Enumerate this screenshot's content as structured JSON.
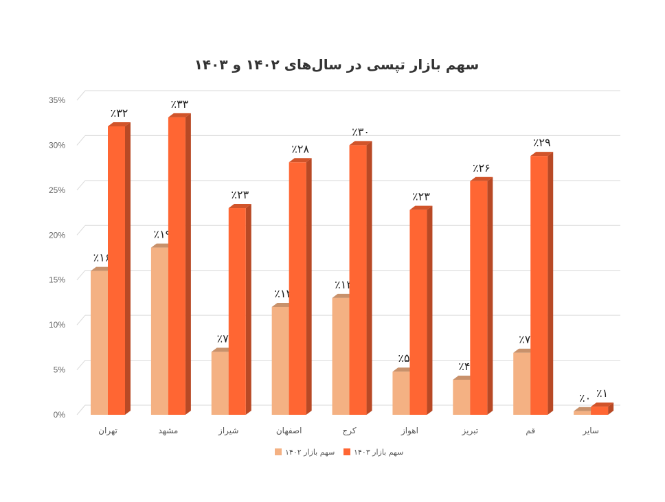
{
  "chart_data": {
    "type": "bar",
    "title": "سهم بازار تپسی در سال‌های ۱۴۰۲ و ۱۴۰۳",
    "xlabel": "",
    "ylabel": "",
    "ylim": [
      0,
      35
    ],
    "y_ticks": [
      "0%",
      "5%",
      "10%",
      "15%",
      "20%",
      "25%",
      "30%",
      "35%"
    ],
    "grid": true,
    "legend_position": "bottom",
    "categories": [
      "تهران",
      "مشهد",
      "شیراز",
      "اصفهان",
      "کرج",
      "اهواز",
      "تبریز",
      "قم",
      "سایر"
    ],
    "series": [
      {
        "name": "سهم بازار ۱۴۰۲",
        "color": "#F4B183",
        "values": [
          16,
          18.6,
          7,
          12,
          13,
          4.8,
          3.9,
          6.9,
          0.4
        ],
        "labels": [
          "٪۱۶",
          "٪۱۹",
          "٪۷",
          "٪۱۲",
          "٪۱۳",
          "٪۵",
          "٪۴",
          "٪۷",
          "٪۰"
        ]
      },
      {
        "name": "سهم بازار ۱۴۰۳",
        "color": "#FF6633",
        "values": [
          32.1,
          33.1,
          23,
          28.1,
          30,
          22.8,
          26,
          28.8,
          0.9
        ],
        "labels": [
          "٪۳۲",
          "٪۳۳",
          "٪۲۳",
          "٪۲۸",
          "٪۳۰",
          "٪۲۳",
          "٪۲۶",
          "٪۲۹",
          "٪۱"
        ]
      }
    ]
  }
}
